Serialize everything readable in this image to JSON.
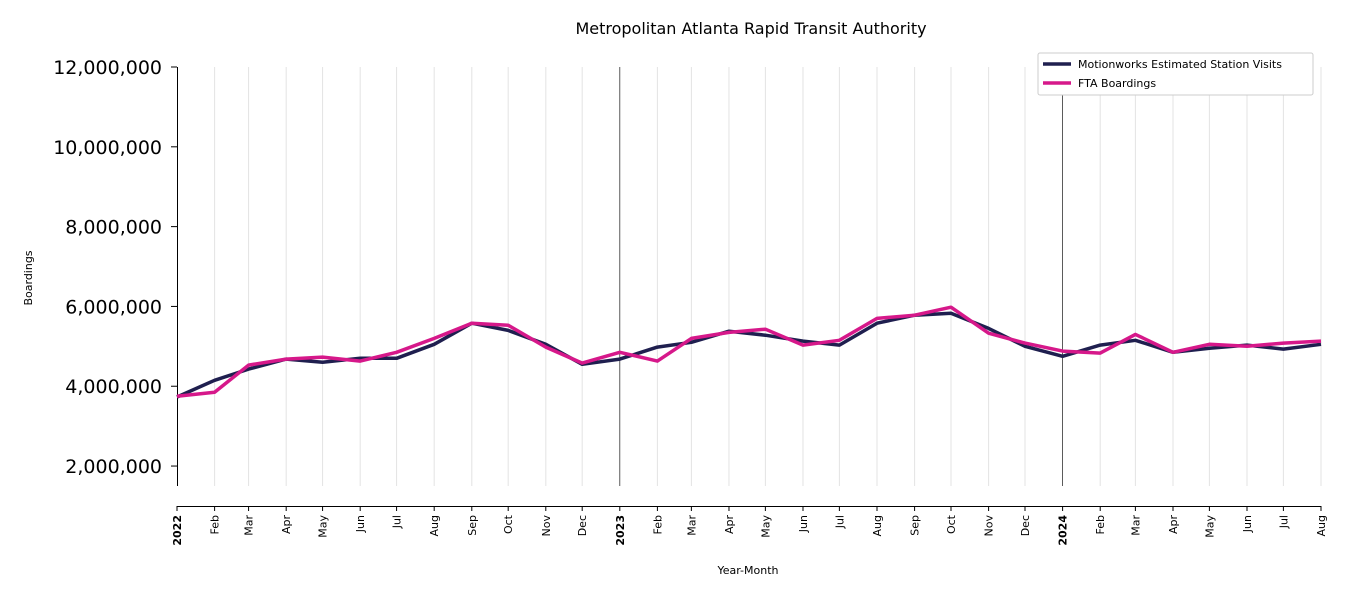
{
  "chart_data": {
    "type": "line",
    "title": "Metropolitan Atlanta Rapid Transit Authority",
    "xlabel": "Year-Month",
    "ylabel": "Boardings",
    "ylim": [
      1500000,
      12000000
    ],
    "yticks": [
      2000000,
      4000000,
      6000000,
      8000000,
      10000000,
      12000000
    ],
    "ytick_labels": [
      "2,000,000",
      "4,000,000",
      "6,000,000",
      "8,000,000",
      "10,000,000",
      "12,000,000"
    ],
    "x": [
      "2022-01",
      "2022-02",
      "2022-03",
      "2022-04",
      "2022-05",
      "2022-06",
      "2022-07",
      "2022-08",
      "2022-09",
      "2022-10",
      "2022-11",
      "2022-12",
      "2023-01",
      "2023-02",
      "2023-03",
      "2023-04",
      "2023-05",
      "2023-06",
      "2023-07",
      "2023-08",
      "2023-09",
      "2023-10",
      "2023-11",
      "2023-12",
      "2024-01",
      "2024-02",
      "2024-03",
      "2024-04",
      "2024-05",
      "2024-06",
      "2024-07",
      "2024-08"
    ],
    "xtick_labels": [
      "2022",
      "Feb",
      "Mar",
      "Apr",
      "May",
      "Jun",
      "Jul",
      "Aug",
      "Sep",
      "Oct",
      "Nov",
      "Dec",
      "2023",
      "Feb",
      "Mar",
      "Apr",
      "May",
      "Jun",
      "Jul",
      "Aug",
      "Sep",
      "Oct",
      "Nov",
      "Dec",
      "2024",
      "Feb",
      "Mar",
      "Apr",
      "May",
      "Jun",
      "Jul",
      "Aug"
    ],
    "grid": "vertical",
    "year_markers": [
      "2023-01",
      "2024-01"
    ],
    "legend_position": "top-right",
    "series": [
      {
        "name": "Motionworks Estimated Station Visits",
        "color": "#1f1f4f",
        "values": [
          3730000,
          4150000,
          4430000,
          4680000,
          4600000,
          4700000,
          4700000,
          5050000,
          5580000,
          5400000,
          5050000,
          4550000,
          4680000,
          4980000,
          5100000,
          5380000,
          5280000,
          5130000,
          5030000,
          5580000,
          5780000,
          5830000,
          5450000,
          5000000,
          4750000,
          5030000,
          5150000,
          4850000,
          4950000,
          5030000,
          4930000,
          5050000
        ]
      },
      {
        "name": "FTA Boardings",
        "color": "#d6188a",
        "values": [
          3750000,
          3850000,
          4530000,
          4680000,
          4730000,
          4630000,
          4850000,
          5200000,
          5580000,
          5530000,
          4980000,
          4580000,
          4850000,
          4630000,
          5200000,
          5350000,
          5430000,
          5030000,
          5150000,
          5700000,
          5780000,
          5980000,
          5330000,
          5080000,
          4880000,
          4830000,
          5300000,
          4850000,
          5050000,
          5000000,
          5080000,
          5130000
        ]
      }
    ]
  }
}
